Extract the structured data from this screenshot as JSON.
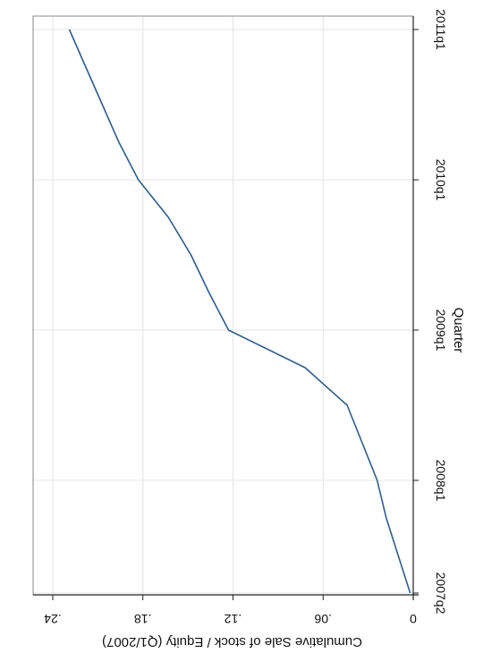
{
  "chart_data": {
    "type": "line",
    "orientation": "rotated-180",
    "xlabel": "Quarter",
    "ylabel": "Cumulative Sale of stock / Equity (Q1/2007)",
    "x_ticks": [
      "2007q2",
      "2008q1",
      "2009q1",
      "2010q1",
      "2011q1"
    ],
    "y_ticks": [
      "0",
      ".06",
      ".12",
      ".18",
      ".24"
    ],
    "y_tick_values": [
      0,
      0.06,
      0.12,
      0.18,
      0.24
    ],
    "xlim": [
      "2007q2",
      "2011q1"
    ],
    "ylim": [
      0,
      0.24
    ],
    "grid": true,
    "series": [
      {
        "color": "#2f5d8a",
        "x": [
          "2007q2",
          "2007q3",
          "2007q4",
          "2008q1",
          "2008q2",
          "2008q3",
          "2008q4",
          "2009q1",
          "2009q2",
          "2009q3",
          "2009q4",
          "2010q1",
          "2010q2",
          "2010q3",
          "2010q4",
          "2011q1"
        ],
        "values": [
          0.002,
          0.01,
          0.018,
          0.024,
          0.034,
          0.044,
          0.072,
          0.123,
          0.136,
          0.148,
          0.163,
          0.183,
          0.196,
          0.207,
          0.218,
          0.229
        ]
      }
    ]
  }
}
